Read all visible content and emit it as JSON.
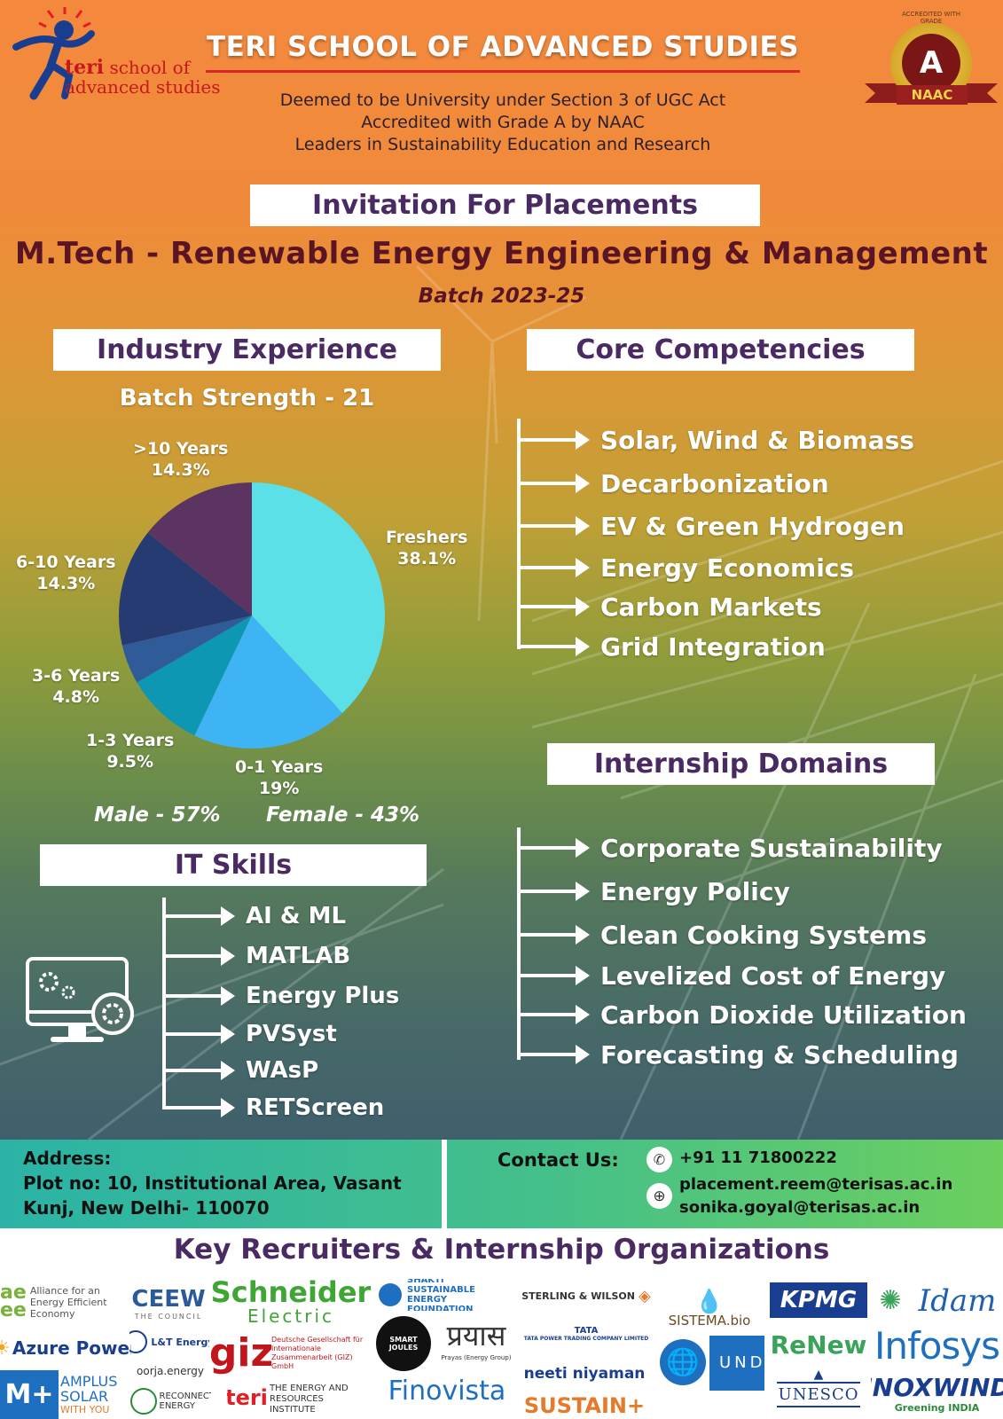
{
  "header": {
    "logo_text_teri": "teri",
    "logo_text_school": "school of",
    "logo_text_advanced": "advanced studies",
    "title": "TERI SCHOOL OF ADVANCED STUDIES",
    "lines": [
      "Deemed to be University under Section 3 of UGC Act",
      "Accredited with Grade A by NAAC",
      "Leaders in Sustainability Education and Research"
    ],
    "badge_grade": "A",
    "badge_label": "NAAC",
    "badge_ring": "ACCREDITED WITH GRADE"
  },
  "invitation": "Invitation For Placements",
  "program": "M.Tech - Renewable Energy Engineering & Management",
  "batch": "Batch 2023-25",
  "industry": {
    "heading": "Industry Experience",
    "strength": "Batch Strength - 21",
    "gender_male": "Male - 57%",
    "gender_female": "Female - 43%"
  },
  "chart_data": {
    "type": "pie",
    "title": "Industry Experience",
    "slices": [
      {
        "label": "Freshers",
        "pct_label": "38.1%",
        "value": 38.1,
        "color": "#5ae0e6"
      },
      {
        "label": "0-1 Years",
        "pct_label": "19%",
        "value": 19.0,
        "color": "#3fb4f5"
      },
      {
        "label": "1-3 Years",
        "pct_label": "9.5%",
        "value": 9.5,
        "color": "#0e97b3"
      },
      {
        "label": "3-6 Years",
        "pct_label": "4.8%",
        "value": 4.8,
        "color": "#2f5c98"
      },
      {
        "label": "6-10 Years",
        "pct_label": "14.3%",
        "value": 14.3,
        "color": "#263b72"
      },
      {
        "label": ">10 Years",
        "pct_label": "14.3%",
        "value": 14.3,
        "color": "#5b3461"
      }
    ]
  },
  "core": {
    "heading": "Core Competencies",
    "items": [
      "Solar, Wind & Biomass",
      "Decarbonization",
      "EV & Green Hydrogen",
      "Energy Economics",
      "Carbon Markets",
      "Grid Integration"
    ]
  },
  "internship": {
    "heading": "Internship Domains",
    "items": [
      "Corporate Sustainability",
      "Energy Policy",
      "Clean Cooking Systems",
      "Levelized Cost of Energy",
      "Carbon Dioxide Utilization",
      "Forecasting & Scheduling"
    ]
  },
  "it": {
    "heading": "IT Skills",
    "items": [
      "AI & ML",
      "MATLAB",
      "Energy Plus",
      "PVSyst",
      "WAsP",
      "RETScreen"
    ]
  },
  "footer": {
    "address_label": "Address:",
    "address_line1": "Plot no: 10, Institutional Area, Vasant",
    "address_line2": "Kunj, New Delhi- 110070",
    "contact_label": "Contact Us:",
    "phone": "+91 11 71800222",
    "email1": "placement.reem@terisas.ac.in",
    "email2": "sonika.goyal@terisas.ac.in"
  },
  "recruiters": {
    "heading": "Key Recruiters & Internship Organizations",
    "logos": {
      "aeee_a": "ae",
      "aeee_b": "ee",
      "aeee_text": "Alliance for an Energy Efficient Economy",
      "ceew": "CEEW",
      "ceew_sub": "THE COUNCIL",
      "schneider": "Schneider",
      "schneider2": "Electric",
      "shakti": "SHAKTI SUSTAINABLE ENERGY FOUNDATION",
      "sterling": "STERLING & WILSON",
      "kpmg": "KPMG",
      "idam": "Idam",
      "lt": "L&T Energy",
      "lt_sub": "Power",
      "giz": "giz",
      "giz_text": "Deutsche Gesellschaft für Internationale Zusammenarbeit (GIZ) GmbH",
      "smart": "SMART JOULES",
      "prayas": "प्रयास",
      "prayas_sub": "Prayas (Energy Group)",
      "tata": "TATA",
      "tata_text": "TATA POWER TRADING COMPANY LIMITED",
      "sistema": "SISTEMA.bio",
      "renew": "ReNew",
      "infosys": "Infosys",
      "azure": "Azure Power",
      "oorja": "oorja.energy",
      "amplus_m": "M+",
      "amplus": "AMPLUS SOLAR",
      "amplus_sub": "WITH YOU",
      "reconnect": "RECONNECT ENERGY",
      "teri": "teri",
      "teri_text": "THE ENERGY AND RESOURCES INSTITUTE",
      "finovista": "Finovista",
      "neeti": "neeti niyaman",
      "sustain": "SUSTAIN+",
      "undp": "UNDP",
      "unesco": "UNESCO",
      "inox": "INOXWIND",
      "inox_sub": "Greening INDIA"
    }
  }
}
